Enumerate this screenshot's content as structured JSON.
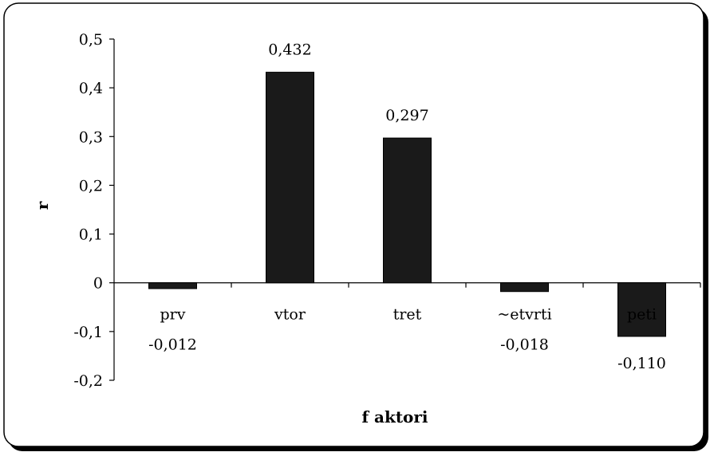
{
  "chart_data": {
    "type": "bar",
    "categories": [
      "prv",
      "vtor",
      "tret",
      "~etvrti",
      "peti"
    ],
    "values": [
      -0.012,
      0.432,
      0.297,
      -0.018,
      -0.11
    ],
    "data_labels": [
      "-0,012",
      "0,432",
      "0,297",
      "-0,018",
      "-0,110"
    ],
    "xlabel": "f aktori",
    "ylabel": "r",
    "ylim": [
      -0.2,
      0.5
    ],
    "yticks": [
      0.5,
      0.4,
      0.3,
      0.2,
      0.1,
      0,
      -0.1,
      -0.2
    ],
    "ytick_labels": [
      "0,5",
      "0,4",
      "0,3",
      "0,2",
      "0,1",
      "0",
      "-0,1",
      "-0,2"
    ],
    "grid": false,
    "legend": "none",
    "bar_color": "#1a1a1a",
    "frame_color": "#000000"
  }
}
